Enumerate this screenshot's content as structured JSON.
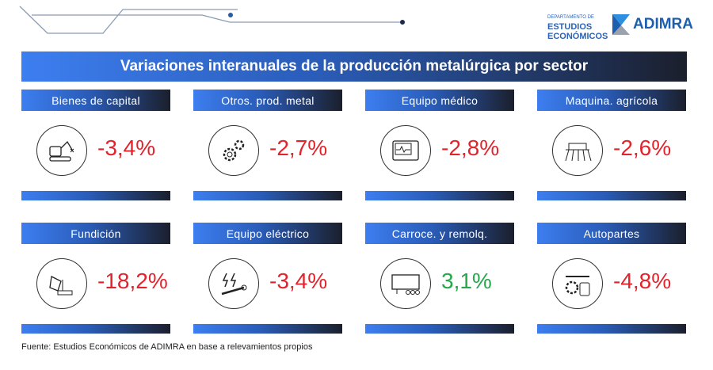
{
  "header": {
    "dept_small": "DEPARTAMENTO DE",
    "dept_line1": "ESTUDIOS",
    "dept_line2": "ECONÓMICOS",
    "brand": "ADIMRA"
  },
  "title": "Variaciones interanuales de la producción metalúrgica por sector",
  "colors": {
    "negative": "#e3232c",
    "positive": "#23a84a",
    "accent": "#3d7ef0"
  },
  "cards": [
    {
      "label": "Bienes de capital",
      "value": "-3,4%",
      "icon": "robot-arm-icon",
      "trend": "negative"
    },
    {
      "label": "Otros. prod. metal",
      "value": "-2,7%",
      "icon": "gears-icon",
      "trend": "negative"
    },
    {
      "label": "Equipo médico",
      "value": "-2,8%",
      "icon": "heart-monitor-icon",
      "trend": "negative"
    },
    {
      "label": "Maquina. agrícola",
      "value": "-2,6%",
      "icon": "agricultural-machine-icon",
      "trend": "negative"
    },
    {
      "label": "Fundición",
      "value": "-18,2%",
      "icon": "foundry-ladle-icon",
      "trend": "negative"
    },
    {
      "label": "Equipo eléctrico",
      "value": "-3,4%",
      "icon": "electric-tools-icon",
      "trend": "negative"
    },
    {
      "label": "Carroce. y remolq.",
      "value": "3,1%",
      "icon": "trailer-icon",
      "trend": "positive"
    },
    {
      "label": "Autopartes",
      "value": "-4,8%",
      "icon": "auto-parts-icon",
      "trend": "negative"
    }
  ],
  "source": "Fuente: Estudios Económicos de ADIMRA en base a relevamientos propios"
}
